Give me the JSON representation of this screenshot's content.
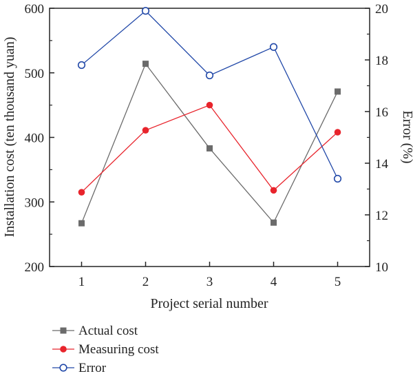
{
  "chart_data": {
    "type": "line",
    "x": [
      1,
      2,
      3,
      4,
      5
    ],
    "xlabel": "Project serial number",
    "ylabel_left": "Installation cost (ten thousand yuan)",
    "ylabel_right": "Error (%)",
    "xlim": [
      0.5,
      5.5
    ],
    "ylim_left": [
      200,
      600
    ],
    "ylim_right": [
      10,
      20
    ],
    "x_ticks": [
      "1",
      "2",
      "3",
      "4",
      "5"
    ],
    "y_left_ticks": [
      "200",
      "300",
      "400",
      "500",
      "600"
    ],
    "y_right_ticks": [
      "10",
      "12",
      "14",
      "16",
      "18",
      "20"
    ],
    "grid": false,
    "legend_position": "bottom-left, below plot",
    "series": [
      {
        "name": "Actual cost",
        "axis": "left",
        "values": [
          267,
          514,
          383,
          268,
          471
        ],
        "color": "#6b6b6b",
        "marker": "square"
      },
      {
        "name": "Measuring cost",
        "axis": "left",
        "values": [
          315,
          411,
          450,
          318,
          408
        ],
        "color": "#e8242c",
        "marker": "circle-filled"
      },
      {
        "name": "Error",
        "axis": "right",
        "values": [
          17.8,
          19.9,
          17.4,
          18.5,
          13.4
        ],
        "color": "#2148a8",
        "marker": "circle-open"
      }
    ]
  }
}
